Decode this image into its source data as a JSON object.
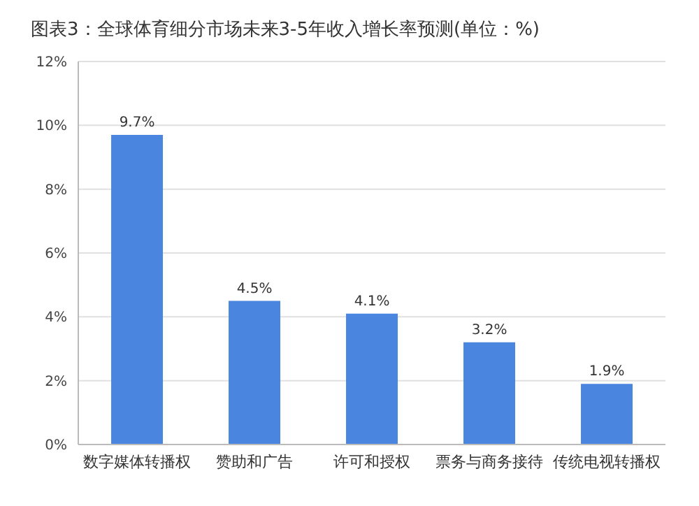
{
  "chart_data": {
    "type": "bar",
    "title": "图表3：全球体育细分市场未来3-5年收入增长率预测(单位：%)",
    "categories": [
      "数字媒体转播权",
      "赞助和广告",
      "许可和授权",
      "票务与商务接待",
      "传统电视转播权"
    ],
    "values": [
      9.7,
      4.5,
      4.1,
      3.2,
      1.9
    ],
    "value_labels": [
      "9.7%",
      "4.5%",
      "4.1%",
      "3.2%",
      "1.9%"
    ],
    "color": "#4a86e0",
    "ylim": [
      0,
      12
    ],
    "yticks": [
      {
        "value": 0,
        "label": "0%"
      },
      {
        "value": 2,
        "label": "2%"
      },
      {
        "value": 4,
        "label": "4%"
      },
      {
        "value": 6,
        "label": "6%"
      },
      {
        "value": 8,
        "label": "8%"
      },
      {
        "value": 10,
        "label": "10%"
      },
      {
        "value": 12,
        "label": "12%"
      }
    ],
    "grid": "y"
  }
}
